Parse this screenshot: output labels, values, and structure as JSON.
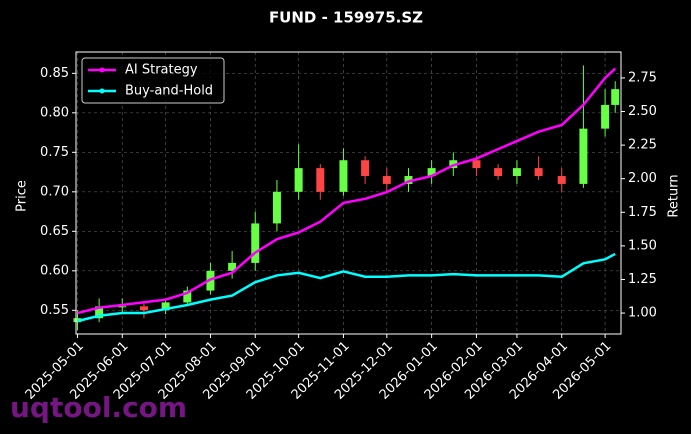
{
  "chart_data": {
    "type": "candlestick",
    "title": "FUND - 159975.SZ",
    "y_label": "Price",
    "y2_label": "Return",
    "watermark": "uqtool.com",
    "x": [
      "2025-05-01",
      "2025-05-16",
      "2025-06-01",
      "2025-06-16",
      "2025-07-01",
      "2025-07-16",
      "2025-08-01",
      "2025-08-16",
      "2025-09-01",
      "2025-09-16",
      "2025-10-01",
      "2025-10-16",
      "2025-11-01",
      "2025-11-16",
      "2025-12-01",
      "2025-12-16",
      "2026-01-01",
      "2026-01-16",
      "2026-02-01",
      "2026-02-16",
      "2026-03-01",
      "2026-03-16",
      "2026-04-01",
      "2026-04-16",
      "2026-05-01",
      "2026-05-08"
    ],
    "open": [
      0.535,
      0.54,
      0.555,
      0.555,
      0.55,
      0.56,
      0.575,
      0.6,
      0.61,
      0.66,
      0.7,
      0.73,
      0.7,
      0.74,
      0.72,
      0.71,
      0.72,
      0.73,
      0.74,
      0.73,
      0.72,
      0.73,
      0.72,
      0.71,
      0.78,
      0.81
    ],
    "high": [
      0.55,
      0.565,
      0.565,
      0.56,
      0.565,
      0.58,
      0.61,
      0.625,
      0.675,
      0.715,
      0.76,
      0.735,
      0.755,
      0.745,
      0.73,
      0.73,
      0.74,
      0.75,
      0.745,
      0.735,
      0.74,
      0.745,
      0.73,
      0.86,
      0.83,
      0.84
    ],
    "low": [
      0.525,
      0.535,
      0.545,
      0.54,
      0.545,
      0.555,
      0.57,
      0.59,
      0.6,
      0.65,
      0.69,
      0.69,
      0.695,
      0.71,
      0.7,
      0.7,
      0.71,
      0.72,
      0.72,
      0.715,
      0.71,
      0.715,
      0.7,
      0.705,
      0.77,
      0.8
    ],
    "close": [
      0.54,
      0.555,
      0.555,
      0.55,
      0.56,
      0.575,
      0.6,
      0.61,
      0.66,
      0.7,
      0.73,
      0.7,
      0.74,
      0.72,
      0.71,
      0.72,
      0.73,
      0.74,
      0.73,
      0.72,
      0.73,
      0.72,
      0.71,
      0.78,
      0.81,
      0.83
    ],
    "up_color": "#66ff44",
    "down_color": "#ff4444",
    "series": [
      {
        "name": "AI Strategy",
        "color": "#ff00ff",
        "axis": "y2",
        "values": [
          1.0,
          1.04,
          1.06,
          1.08,
          1.1,
          1.15,
          1.25,
          1.3,
          1.45,
          1.55,
          1.6,
          1.68,
          1.82,
          1.85,
          1.9,
          1.98,
          2.02,
          2.1,
          2.15,
          2.22,
          2.28,
          2.35,
          2.4,
          2.55,
          2.75,
          2.82
        ]
      },
      {
        "name": "Buy-and-Hold",
        "color": "#00ffff",
        "axis": "y2",
        "values": [
          0.94,
          0.98,
          1.0,
          1.0,
          1.03,
          1.06,
          1.1,
          1.13,
          1.23,
          1.28,
          1.3,
          1.26,
          1.31,
          1.27,
          1.27,
          1.28,
          1.28,
          1.29,
          1.28,
          1.28,
          1.28,
          1.28,
          1.27,
          1.37,
          1.4,
          1.44
        ]
      }
    ],
    "xlim": [
      "2025-04-30",
      "2026-05-12"
    ],
    "xticks": [
      "2025-05-01",
      "2025-06-01",
      "2025-07-01",
      "2025-08-01",
      "2025-09-01",
      "2025-10-01",
      "2025-11-01",
      "2025-12-01",
      "2026-01-01",
      "2026-02-01",
      "2026-03-01",
      "2026-04-01",
      "2026-05-01"
    ],
    "ylim": [
      0.52,
      0.877
    ],
    "yticks": [
      0.55,
      {
        "value": 0.6,
        "label": "0.60"
      },
      0.65,
      {
        "value": 0.7,
        "label": "0.70"
      },
      0.75,
      {
        "value": 0.8,
        "label": "0.80"
      },
      0.85
    ],
    "y2lim": [
      0.844,
      2.943
    ],
    "y2ticks": [
      {
        "value": 1,
        "label": "1.00"
      },
      1.25,
      {
        "value": 1.5,
        "label": "1.50"
      },
      1.75,
      {
        "value": 2,
        "label": "2.00"
      },
      2.25,
      {
        "value": 2.5,
        "label": "2.50"
      },
      2.75
    ],
    "grid": true,
    "legend": "upper-left"
  }
}
